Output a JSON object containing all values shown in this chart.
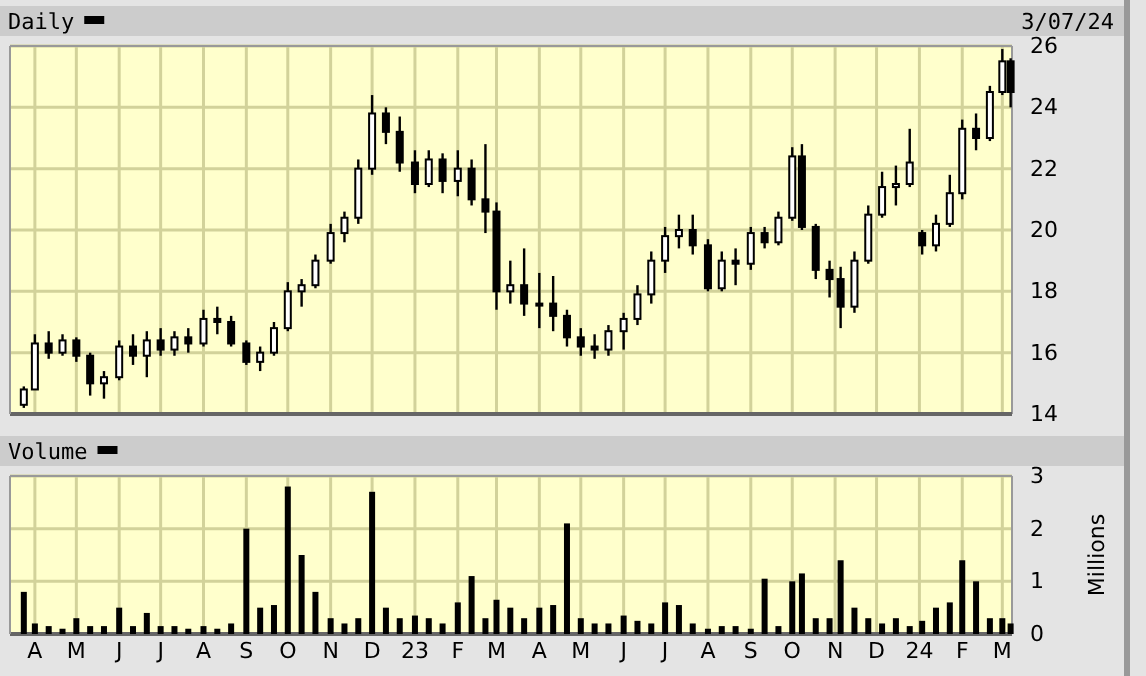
{
  "chart_data": [
    {
      "type": "candlestick",
      "title": "Daily",
      "annotations": [
        "3/07/24"
      ],
      "color": "#000000",
      "grid": true,
      "tick_labels": "y",
      "x": [
        "2022-03-24",
        "2022-04-01",
        "2022-04-11",
        "2022-04-21",
        "2022-05-01",
        "2022-05-11",
        "2022-05-21",
        "2022-06-01",
        "2022-06-11",
        "2022-06-21",
        "2022-07-01",
        "2022-07-11",
        "2022-07-21",
        "2022-08-01",
        "2022-08-11",
        "2022-08-21",
        "2022-09-01",
        "2022-09-11",
        "2022-09-21",
        "2022-10-01",
        "2022-10-11",
        "2022-10-21",
        "2022-11-01",
        "2022-11-11",
        "2022-11-21",
        "2022-12-01",
        "2022-12-11",
        "2022-12-21",
        "2023-01-01",
        "2023-01-11",
        "2023-01-21",
        "2023-02-01",
        "2023-02-11",
        "2023-02-21",
        "2023-03-01",
        "2023-03-11",
        "2023-03-21",
        "2023-04-01",
        "2023-04-11",
        "2023-04-21",
        "2023-05-01",
        "2023-05-11",
        "2023-05-21",
        "2023-06-01",
        "2023-06-11",
        "2023-06-21",
        "2023-07-01",
        "2023-07-11",
        "2023-07-21",
        "2023-08-01",
        "2023-08-11",
        "2023-08-21",
        "2023-09-01",
        "2023-09-11",
        "2023-09-21",
        "2023-10-01",
        "2023-10-08",
        "2023-10-18",
        "2023-10-28",
        "2023-11-05",
        "2023-11-15",
        "2023-11-25",
        "2023-12-05",
        "2023-12-15",
        "2023-12-25",
        "2024-01-03",
        "2024-01-13",
        "2024-01-23",
        "2024-02-01",
        "2024-02-11",
        "2024-02-21",
        "2024-03-01",
        "2024-03-07"
      ],
      "ohlc": [
        [
          14.3,
          14.9,
          14.2,
          14.8
        ],
        [
          14.8,
          16.6,
          14.8,
          16.3
        ],
        [
          16.3,
          16.7,
          15.8,
          16.0
        ],
        [
          16.0,
          16.6,
          15.9,
          16.4
        ],
        [
          16.4,
          16.5,
          15.7,
          15.9
        ],
        [
          15.9,
          16.0,
          14.6,
          15.0
        ],
        [
          15.0,
          15.4,
          14.5,
          15.2
        ],
        [
          15.2,
          16.4,
          15.1,
          16.2
        ],
        [
          16.2,
          16.6,
          15.6,
          15.9
        ],
        [
          15.9,
          16.7,
          15.2,
          16.4
        ],
        [
          16.4,
          16.8,
          15.9,
          16.1
        ],
        [
          16.1,
          16.7,
          15.9,
          16.5
        ],
        [
          16.5,
          16.8,
          16.0,
          16.3
        ],
        [
          16.3,
          17.4,
          16.2,
          17.1
        ],
        [
          17.1,
          17.5,
          16.6,
          17.0
        ],
        [
          17.0,
          17.2,
          16.2,
          16.3
        ],
        [
          16.3,
          16.4,
          15.6,
          15.7
        ],
        [
          15.7,
          16.2,
          15.4,
          16.0
        ],
        [
          16.0,
          17.0,
          15.9,
          16.8
        ],
        [
          16.8,
          18.3,
          16.7,
          18.0
        ],
        [
          18.0,
          18.4,
          17.5,
          18.2
        ],
        [
          18.2,
          19.2,
          18.1,
          19.0
        ],
        [
          19.0,
          20.2,
          18.9,
          19.9
        ],
        [
          19.9,
          20.6,
          19.6,
          20.4
        ],
        [
          20.4,
          22.3,
          20.2,
          22.0
        ],
        [
          22.0,
          24.4,
          21.8,
          23.8
        ],
        [
          23.8,
          24.0,
          22.8,
          23.2
        ],
        [
          23.2,
          23.7,
          21.9,
          22.2
        ],
        [
          22.2,
          22.6,
          21.2,
          21.5
        ],
        [
          21.5,
          22.6,
          21.4,
          22.3
        ],
        [
          22.3,
          22.5,
          21.2,
          21.6
        ],
        [
          21.6,
          22.6,
          21.1,
          22.0
        ],
        [
          22.0,
          22.3,
          20.8,
          21.0
        ],
        [
          21.0,
          22.8,
          19.9,
          20.6
        ],
        [
          20.6,
          20.9,
          17.4,
          18.0
        ],
        [
          18.0,
          19.0,
          17.6,
          18.2
        ],
        [
          18.2,
          19.4,
          17.2,
          17.6
        ],
        [
          17.6,
          18.6,
          16.8,
          17.6
        ],
        [
          17.6,
          18.5,
          16.7,
          17.2
        ],
        [
          17.2,
          17.4,
          16.2,
          16.5
        ],
        [
          16.5,
          16.8,
          15.9,
          16.2
        ],
        [
          16.2,
          16.6,
          15.8,
          16.1
        ],
        [
          16.1,
          16.9,
          15.9,
          16.7
        ],
        [
          16.7,
          17.3,
          16.1,
          17.1
        ],
        [
          17.1,
          18.2,
          16.9,
          17.9
        ],
        [
          17.9,
          19.3,
          17.6,
          19.0
        ],
        [
          19.0,
          20.1,
          18.6,
          19.8
        ],
        [
          19.8,
          20.5,
          19.4,
          20.0
        ],
        [
          20.0,
          20.5,
          19.2,
          19.5
        ],
        [
          19.5,
          19.7,
          18.0,
          18.1
        ],
        [
          18.1,
          19.3,
          18.0,
          19.0
        ],
        [
          19.0,
          19.4,
          18.2,
          18.9
        ],
        [
          18.9,
          20.1,
          18.7,
          19.9
        ],
        [
          19.9,
          20.1,
          19.4,
          19.6
        ],
        [
          19.6,
          20.6,
          19.5,
          20.4
        ],
        [
          20.4,
          22.7,
          20.3,
          22.4
        ],
        [
          22.4,
          22.8,
          20.0,
          20.1
        ],
        [
          20.1,
          20.2,
          18.4,
          18.7
        ],
        [
          18.7,
          19.0,
          17.8,
          18.4
        ],
        [
          18.4,
          18.8,
          16.8,
          17.5
        ],
        [
          17.5,
          19.3,
          17.3,
          19.0
        ],
        [
          19.0,
          20.8,
          18.9,
          20.5
        ],
        [
          20.5,
          21.9,
          20.4,
          21.4
        ],
        [
          21.4,
          22.1,
          20.8,
          21.5
        ],
        [
          21.5,
          23.3,
          21.4,
          22.2
        ],
        [
          19.9,
          20.0,
          19.2,
          19.5
        ],
        [
          19.5,
          20.5,
          19.3,
          20.2
        ],
        [
          20.2,
          21.8,
          20.1,
          21.2
        ],
        [
          21.2,
          23.6,
          21.0,
          23.3
        ],
        [
          23.3,
          23.8,
          22.6,
          23.0
        ],
        [
          23.0,
          24.7,
          22.9,
          24.5
        ],
        [
          24.5,
          25.9,
          24.4,
          25.5
        ],
        [
          25.5,
          25.6,
          24.0,
          24.5
        ]
      ],
      "xlim": [
        "2022-03-14",
        "2024-03-08"
      ],
      "xticks": [
        {
          "value": "2022-04-01",
          "label": null
        },
        {
          "value": "2022-05-01",
          "label": null
        },
        {
          "value": "2022-06-01",
          "label": null
        },
        {
          "value": "2022-07-01",
          "label": null
        },
        {
          "value": "2022-08-01",
          "label": null
        },
        {
          "value": "2022-09-01",
          "label": null
        },
        {
          "value": "2022-10-01",
          "label": null
        },
        {
          "value": "2022-11-01",
          "label": null
        },
        {
          "value": "2022-12-01",
          "label": null
        },
        {
          "value": "2023-01-01",
          "label": null
        },
        {
          "value": "2023-02-01",
          "label": null
        },
        {
          "value": "2023-03-01",
          "label": null
        },
        {
          "value": "2023-04-01",
          "label": null
        },
        {
          "value": "2023-05-01",
          "label": null
        },
        {
          "value": "2023-06-01",
          "label": null
        },
        {
          "value": "2023-07-01",
          "label": null
        },
        {
          "value": "2023-08-01",
          "label": null
        },
        {
          "value": "2023-09-01",
          "label": null
        },
        {
          "value": "2023-10-01",
          "label": null
        },
        {
          "value": "2023-11-01",
          "label": null
        },
        {
          "value": "2023-12-01",
          "label": null
        },
        {
          "value": "2024-01-01",
          "label": null
        },
        {
          "value": "2024-02-01",
          "label": null
        },
        {
          "value": "2024-03-01",
          "label": null
        }
      ],
      "ylim": [
        14,
        26
      ],
      "yticks": [
        14,
        16,
        18,
        20,
        22,
        24,
        26
      ]
    },
    {
      "type": "bar",
      "title": "Volume",
      "ylabel": "Millions",
      "grid": true,
      "x": [
        "2022-03-24",
        "2022-04-01",
        "2022-04-11",
        "2022-04-21",
        "2022-05-01",
        "2022-05-11",
        "2022-05-21",
        "2022-06-01",
        "2022-06-11",
        "2022-06-21",
        "2022-07-01",
        "2022-07-11",
        "2022-07-21",
        "2022-08-01",
        "2022-08-11",
        "2022-08-21",
        "2022-09-01",
        "2022-09-11",
        "2022-09-21",
        "2022-10-01",
        "2022-10-11",
        "2022-10-21",
        "2022-11-01",
        "2022-11-11",
        "2022-11-21",
        "2022-12-01",
        "2022-12-11",
        "2022-12-21",
        "2023-01-01",
        "2023-01-11",
        "2023-01-21",
        "2023-02-01",
        "2023-02-11",
        "2023-02-21",
        "2023-03-01",
        "2023-03-11",
        "2023-03-21",
        "2023-04-01",
        "2023-04-11",
        "2023-04-21",
        "2023-05-01",
        "2023-05-11",
        "2023-05-21",
        "2023-06-01",
        "2023-06-11",
        "2023-06-21",
        "2023-07-01",
        "2023-07-11",
        "2023-07-21",
        "2023-08-01",
        "2023-08-11",
        "2023-08-21",
        "2023-09-01",
        "2023-09-11",
        "2023-09-21",
        "2023-10-01",
        "2023-10-08",
        "2023-10-18",
        "2023-10-28",
        "2023-11-05",
        "2023-11-15",
        "2023-11-25",
        "2023-12-05",
        "2023-12-15",
        "2023-12-25",
        "2024-01-03",
        "2024-01-13",
        "2024-01-23",
        "2024-02-01",
        "2024-02-11",
        "2024-02-21",
        "2024-03-01",
        "2024-03-07"
      ],
      "series": [
        {
          "color": "#000000",
          "values": [
            0.8,
            0.2,
            0.15,
            0.1,
            0.3,
            0.15,
            0.15,
            0.5,
            0.15,
            0.4,
            0.15,
            0.15,
            0.1,
            0.15,
            0.1,
            0.2,
            2.0,
            0.5,
            0.55,
            2.8,
            1.5,
            0.8,
            0.3,
            0.2,
            0.3,
            2.7,
            0.5,
            0.3,
            0.35,
            0.3,
            0.2,
            0.6,
            1.1,
            0.3,
            0.65,
            0.5,
            0.3,
            0.5,
            0.55,
            2.1,
            0.3,
            0.2,
            0.2,
            0.35,
            0.25,
            0.2,
            0.6,
            0.55,
            0.2,
            0.1,
            0.15,
            0.15,
            0.1,
            1.05,
            0.15,
            1.0,
            1.15,
            0.3,
            0.3,
            1.4,
            0.5,
            0.3,
            0.2,
            0.3,
            0.15,
            0.25,
            0.5,
            0.6,
            1.4,
            1.0,
            0.3,
            0.3,
            0.2
          ]
        }
      ],
      "xlim": [
        "2022-03-14",
        "2024-03-08"
      ],
      "xticks": [
        {
          "value": "2022-04-01",
          "label": "A"
        },
        {
          "value": "2022-05-01",
          "label": "M"
        },
        {
          "value": "2022-06-01",
          "label": "J"
        },
        {
          "value": "2022-07-01",
          "label": "J"
        },
        {
          "value": "2022-08-01",
          "label": "A"
        },
        {
          "value": "2022-09-01",
          "label": "S"
        },
        {
          "value": "2022-10-01",
          "label": "O"
        },
        {
          "value": "2022-11-01",
          "label": "N"
        },
        {
          "value": "2022-12-01",
          "label": "D"
        },
        {
          "value": "2023-01-01",
          "label": "23"
        },
        {
          "value": "2023-02-01",
          "label": "F"
        },
        {
          "value": "2023-03-01",
          "label": "M"
        },
        {
          "value": "2023-04-01",
          "label": "A"
        },
        {
          "value": "2023-05-01",
          "label": "M"
        },
        {
          "value": "2023-06-01",
          "label": "J"
        },
        {
          "value": "2023-07-01",
          "label": "J"
        },
        {
          "value": "2023-08-01",
          "label": "A"
        },
        {
          "value": "2023-09-01",
          "label": "S"
        },
        {
          "value": "2023-10-01",
          "label": "O"
        },
        {
          "value": "2023-11-01",
          "label": "N"
        },
        {
          "value": "2023-12-01",
          "label": "D"
        },
        {
          "value": "2024-01-01",
          "label": "24"
        },
        {
          "value": "2024-02-01",
          "label": "F"
        },
        {
          "value": "2024-03-01",
          "label": "M"
        }
      ],
      "ylim": [
        0,
        3
      ],
      "yticks": [
        0,
        1,
        2,
        3
      ]
    }
  ]
}
